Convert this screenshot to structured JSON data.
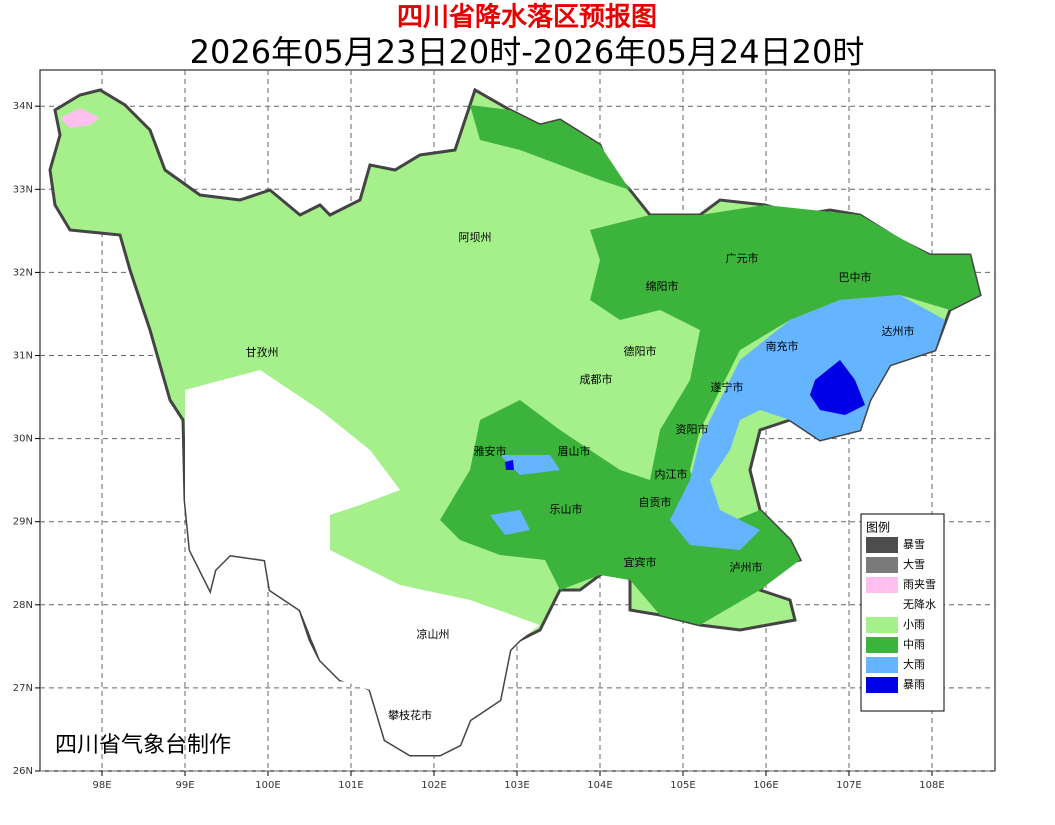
{
  "header": {
    "title": "四川省降水落区预报图",
    "subtitle": "2026年05月23日20时-2026年05月24日20时"
  },
  "map": {
    "lon_ticks": [
      {
        "value": 98,
        "label": "98E"
      },
      {
        "value": 99,
        "label": "99E"
      },
      {
        "value": 100,
        "label": "100E"
      },
      {
        "value": 101,
        "label": "101E"
      },
      {
        "value": 102,
        "label": "102E"
      },
      {
        "value": 103,
        "label": "103E"
      },
      {
        "value": 104,
        "label": "104E"
      },
      {
        "value": 105,
        "label": "105E"
      },
      {
        "value": 106,
        "label": "106E"
      },
      {
        "value": 107,
        "label": "107E"
      },
      {
        "value": 108,
        "label": "108E"
      }
    ],
    "lat_ticks": [
      {
        "value": 26,
        "label": "26N"
      },
      {
        "value": 27,
        "label": "27N"
      },
      {
        "value": 28,
        "label": "28N"
      },
      {
        "value": 29,
        "label": "29N"
      },
      {
        "value": 30,
        "label": "30N"
      },
      {
        "value": 31,
        "label": "31N"
      },
      {
        "value": 32,
        "label": "32N"
      },
      {
        "value": 33,
        "label": "33N"
      },
      {
        "value": 34,
        "label": "34N"
      }
    ],
    "cities": [
      "阿坝州",
      "广元市",
      "巴中市",
      "绵阳市",
      "达州市",
      "甘孜州",
      "德阳市",
      "南充市",
      "成都市",
      "遂宁市",
      "资阳市",
      "雅安市",
      "眉山市",
      "内江市",
      "乐山市",
      "自贡市",
      "宜宾市",
      "泸州市",
      "凉山州",
      "攀枝花市"
    ],
    "credit": "四川省气象台制作"
  },
  "legend": {
    "title": "图例",
    "items": [
      {
        "name": "暴雪",
        "color": "#4d4d4d"
      },
      {
        "name": "大雪",
        "color": "#7a7a7a"
      },
      {
        "name": "雨夹雪",
        "color": "#ffc0f0"
      },
      {
        "name": "无降水",
        "color": "#ffffff"
      },
      {
        "name": "小雨",
        "color": "#a6f08c"
      },
      {
        "name": "中雨",
        "color": "#3cb43c"
      },
      {
        "name": "大雨",
        "color": "#64b4ff"
      },
      {
        "name": "暴雨",
        "color": "#0000e6"
      }
    ]
  }
}
